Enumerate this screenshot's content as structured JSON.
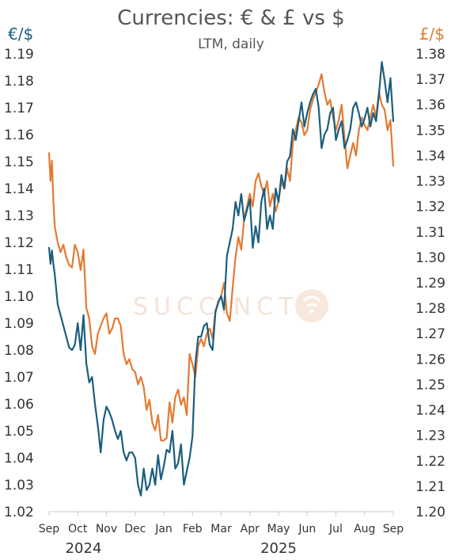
{
  "chart_data": {
    "type": "line",
    "title": "Currencies: € & £ vs $",
    "subtitle": "LTM, daily",
    "y_left_label": "€/$",
    "y_right_label": "£/$",
    "y_left_lim": [
      1.02,
      1.19
    ],
    "y_right_lim": [
      1.2,
      1.38
    ],
    "y_left_ticks": [
      "1.02",
      "1.03",
      "1.04",
      "1.05",
      "1.06",
      "1.07",
      "1.08",
      "1.09",
      "1.10",
      "1.11",
      "1.12",
      "1.13",
      "1.14",
      "1.15",
      "1.16",
      "1.17",
      "1.18",
      "1.19"
    ],
    "y_right_ticks": [
      "1.20",
      "1.21",
      "1.22",
      "1.23",
      "1.24",
      "1.25",
      "1.26",
      "1.27",
      "1.28",
      "1.29",
      "1.30",
      "1.31",
      "1.32",
      "1.33",
      "1.34",
      "1.35",
      "1.36",
      "1.37",
      "1.38"
    ],
    "x_ticks": [
      "Sep",
      "Oct",
      "Nov",
      "Dec",
      "Jan",
      "Feb",
      "Mar",
      "Apr",
      "May",
      "Jun",
      "Jul",
      "Aug",
      "Sep"
    ],
    "years": [
      {
        "label": "2024",
        "at_tick": 1.2
      },
      {
        "label": "2025",
        "at_tick": 8.0
      }
    ],
    "x_unit": "months since start of Sep 2024",
    "grid": false,
    "watermark": "SUCCINCT",
    "series": [
      {
        "name": "€/$",
        "axis": "left",
        "color": "#1b5e7e",
        "x": [
          0.0,
          0.05,
          0.1,
          0.15,
          0.2,
          0.3,
          0.4,
          0.5,
          0.6,
          0.7,
          0.8,
          0.9,
          1.0,
          1.1,
          1.2,
          1.3,
          1.4,
          1.5,
          1.6,
          1.7,
          1.8,
          1.9,
          2.0,
          2.1,
          2.2,
          2.3,
          2.4,
          2.5,
          2.6,
          2.7,
          2.8,
          2.9,
          3.0,
          3.1,
          3.2,
          3.3,
          3.4,
          3.5,
          3.6,
          3.7,
          3.8,
          3.9,
          4.0,
          4.1,
          4.2,
          4.3,
          4.4,
          4.5,
          4.6,
          4.7,
          4.8,
          4.9,
          5.0,
          5.1,
          5.2,
          5.3,
          5.4,
          5.5,
          5.6,
          5.7,
          5.8,
          5.9,
          6.0,
          6.1,
          6.2,
          6.3,
          6.4,
          6.5,
          6.6,
          6.7,
          6.8,
          6.9,
          7.0,
          7.1,
          7.2,
          7.3,
          7.4,
          7.5,
          7.6,
          7.7,
          7.8,
          7.9,
          8.0,
          8.1,
          8.2,
          8.3,
          8.4,
          8.5,
          8.6,
          8.7,
          8.8,
          8.9,
          9.0,
          9.1,
          9.2,
          9.3,
          9.4,
          9.5,
          9.6,
          9.7,
          9.8,
          9.9,
          10.0,
          10.1,
          10.2,
          10.3,
          10.4,
          10.5,
          10.6,
          10.7,
          10.8,
          10.9,
          11.0,
          11.1,
          11.2,
          11.3,
          11.4,
          11.5,
          11.6,
          11.7,
          11.8,
          11.9,
          12.0
        ],
        "values": [
          1.118,
          1.112,
          1.117,
          1.112,
          1.108,
          1.097,
          1.093,
          1.089,
          1.085,
          1.081,
          1.08,
          1.082,
          1.09,
          1.08,
          1.093,
          1.075,
          1.068,
          1.07,
          1.06,
          1.052,
          1.042,
          1.054,
          1.059,
          1.057,
          1.054,
          1.05,
          1.047,
          1.05,
          1.042,
          1.039,
          1.042,
          1.042,
          1.04,
          1.03,
          1.026,
          1.036,
          1.028,
          1.03,
          1.036,
          1.03,
          1.041,
          1.032,
          1.037,
          1.043,
          1.042,
          1.05,
          1.036,
          1.038,
          1.045,
          1.03,
          1.035,
          1.04,
          1.048,
          1.075,
          1.085,
          1.085,
          1.089,
          1.09,
          1.082,
          1.08,
          1.094,
          1.098,
          1.1,
          1.095,
          1.115,
          1.12,
          1.125,
          1.135,
          1.13,
          1.138,
          1.128,
          1.132,
          1.136,
          1.118,
          1.126,
          1.12,
          1.135,
          1.14,
          1.125,
          1.13,
          1.125,
          1.14,
          1.135,
          1.145,
          1.14,
          1.15,
          1.152,
          1.162,
          1.158,
          1.165,
          1.172,
          1.163,
          1.168,
          1.172,
          1.175,
          1.177,
          1.17,
          1.155,
          1.16,
          1.162,
          1.168,
          1.17,
          1.158,
          1.162,
          1.165,
          1.155,
          1.158,
          1.162,
          1.17,
          1.172,
          1.168,
          1.163,
          1.166,
          1.17,
          1.163,
          1.168,
          1.165,
          1.175,
          1.187,
          1.18,
          1.172,
          1.181,
          1.165
        ]
      },
      {
        "name": "£/$",
        "axis": "right",
        "color": "#e37b33",
        "x": [
          0.0,
          0.05,
          0.1,
          0.15,
          0.2,
          0.3,
          0.4,
          0.5,
          0.6,
          0.7,
          0.8,
          0.9,
          1.0,
          1.1,
          1.2,
          1.3,
          1.4,
          1.5,
          1.6,
          1.7,
          1.8,
          1.9,
          2.0,
          2.1,
          2.2,
          2.3,
          2.4,
          2.5,
          2.6,
          2.7,
          2.8,
          2.9,
          3.0,
          3.1,
          3.2,
          3.3,
          3.4,
          3.5,
          3.6,
          3.7,
          3.8,
          3.9,
          4.0,
          4.1,
          4.2,
          4.3,
          4.4,
          4.5,
          4.6,
          4.7,
          4.8,
          4.9,
          5.0,
          5.1,
          5.2,
          5.3,
          5.4,
          5.5,
          5.6,
          5.7,
          5.8,
          5.9,
          6.0,
          6.1,
          6.2,
          6.3,
          6.4,
          6.5,
          6.6,
          6.7,
          6.8,
          6.9,
          7.0,
          7.1,
          7.2,
          7.3,
          7.4,
          7.5,
          7.6,
          7.7,
          7.8,
          7.9,
          8.0,
          8.1,
          8.2,
          8.3,
          8.4,
          8.5,
          8.6,
          8.7,
          8.8,
          8.9,
          9.0,
          9.1,
          9.2,
          9.3,
          9.4,
          9.5,
          9.6,
          9.7,
          9.8,
          9.9,
          10.0,
          10.1,
          10.2,
          10.3,
          10.4,
          10.5,
          10.6,
          10.7,
          10.8,
          10.9,
          11.0,
          11.1,
          11.2,
          11.3,
          11.4,
          11.5,
          11.6,
          11.7,
          11.8,
          11.9,
          12.0
        ],
        "values": [
          1.341,
          1.33,
          1.338,
          1.322,
          1.312,
          1.306,
          1.302,
          1.305,
          1.3,
          1.297,
          1.296,
          1.305,
          1.302,
          1.295,
          1.303,
          1.28,
          1.276,
          1.265,
          1.262,
          1.27,
          1.273,
          1.276,
          1.278,
          1.27,
          1.272,
          1.276,
          1.276,
          1.273,
          1.262,
          1.258,
          1.26,
          1.256,
          1.255,
          1.25,
          1.253,
          1.249,
          1.24,
          1.244,
          1.235,
          1.232,
          1.238,
          1.228,
          1.228,
          1.229,
          1.243,
          1.235,
          1.245,
          1.248,
          1.242,
          1.245,
          1.238,
          1.262,
          1.258,
          1.253,
          1.265,
          1.268,
          1.265,
          1.27,
          1.272,
          1.268,
          1.279,
          1.282,
          1.285,
          1.29,
          1.278,
          1.275,
          1.288,
          1.3,
          1.308,
          1.303,
          1.315,
          1.32,
          1.325,
          1.32,
          1.33,
          1.333,
          1.328,
          1.325,
          1.33,
          1.32,
          1.325,
          1.318,
          1.322,
          1.33,
          1.327,
          1.335,
          1.33,
          1.345,
          1.35,
          1.355,
          1.353,
          1.348,
          1.35,
          1.358,
          1.362,
          1.365,
          1.368,
          1.372,
          1.365,
          1.36,
          1.362,
          1.355,
          1.35,
          1.354,
          1.36,
          1.347,
          1.335,
          1.34,
          1.345,
          1.34,
          1.35,
          1.355,
          1.352,
          1.35,
          1.355,
          1.36,
          1.355,
          1.365,
          1.36,
          1.358,
          1.35,
          1.354,
          1.336
        ]
      }
    ]
  }
}
